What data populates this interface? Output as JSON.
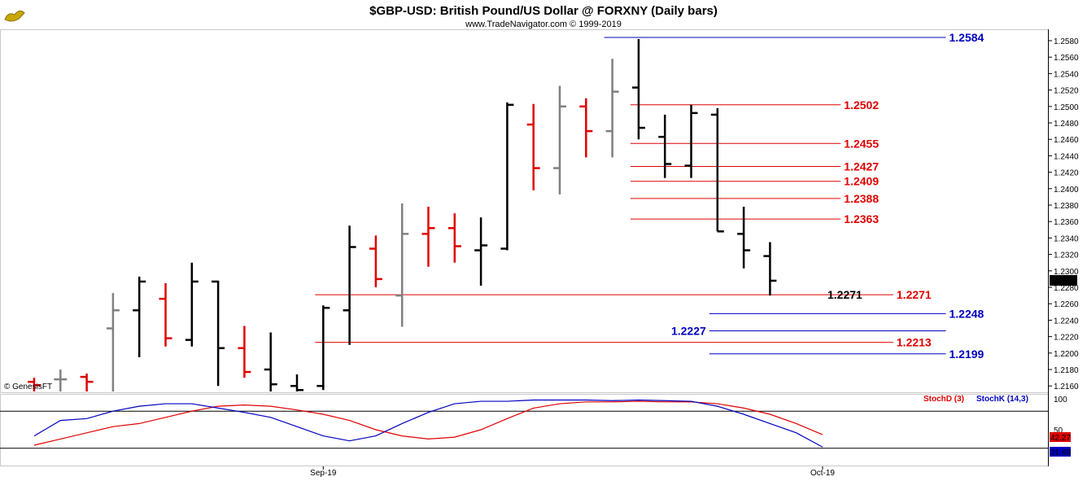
{
  "header": {
    "title": "$GBP-USD:  British Pound/US Dollar @ FORXNY  (Daily bars)",
    "subtitle": "www.TradeNavigator.com © 1999-2019",
    "logo_icon": "genie-lamp-logo-icon"
  },
  "watermark": "© GenesisFT",
  "colors": {
    "up_bar": "#000000",
    "down_bar": "#e00000",
    "neutral_bar": "#808080",
    "stoch_d": "#e00000",
    "stoch_k": "#0000c0",
    "blue_level": "#0000c0",
    "red_level": "#e00000"
  },
  "chart_data": [
    {
      "type": "ohlc",
      "name": "$GBP-USD",
      "ylim": [
        1.215,
        1.259
      ],
      "y_ticks": [
        "1.2580",
        "1.2560",
        "1.2540",
        "1.2520",
        "1.2500",
        "1.2480",
        "1.2460",
        "1.2440",
        "1.2420",
        "1.2400",
        "1.2380",
        "1.2360",
        "1.2340",
        "1.2320",
        "1.2300",
        "1.2280",
        "1.2260",
        "1.2240",
        "1.2220",
        "1.2200",
        "1.2180",
        "1.2160"
      ],
      "last_price": "1.2288",
      "x_labels": [
        {
          "label": "Sep-19",
          "bar": 11
        },
        {
          "label": "Oct-19",
          "bar": 30
        }
      ],
      "bars": [
        {
          "o": 1.2165,
          "h": 1.217,
          "l": 1.214,
          "c": 1.2161,
          "color": "red"
        },
        {
          "o": 1.2168,
          "h": 1.218,
          "l": 1.215,
          "c": 1.2168,
          "color": "gray"
        },
        {
          "o": 1.2171,
          "h": 1.2175,
          "l": 1.215,
          "c": 1.2165,
          "color": "red"
        },
        {
          "o": 1.223,
          "h": 1.2273,
          "l": 1.215,
          "c": 1.2252,
          "color": "gray"
        },
        {
          "o": 1.2252,
          "h": 1.2293,
          "l": 1.2195,
          "c": 1.2287,
          "color": "black"
        },
        {
          "o": 1.2266,
          "h": 1.2285,
          "l": 1.2208,
          "c": 1.2218,
          "color": "red"
        },
        {
          "o": 1.2216,
          "h": 1.231,
          "l": 1.2208,
          "c": 1.2287,
          "color": "black"
        },
        {
          "o": 1.2287,
          "h": 1.2288,
          "l": 1.216,
          "c": 1.2206,
          "color": "black"
        },
        {
          "o": 1.2206,
          "h": 1.2233,
          "l": 1.217,
          "c": 1.2177,
          "color": "red"
        },
        {
          "o": 1.218,
          "h": 1.2225,
          "l": 1.215,
          "c": 1.2162,
          "color": "black"
        },
        {
          "o": 1.216,
          "h": 1.2174,
          "l": 1.215,
          "c": 1.2155,
          "color": "black"
        },
        {
          "o": 1.216,
          "h": 1.2258,
          "l": 1.2155,
          "c": 1.2255,
          "color": "black"
        },
        {
          "o": 1.2252,
          "h": 1.2355,
          "l": 1.221,
          "c": 1.2329,
          "color": "black"
        },
        {
          "o": 1.2327,
          "h": 1.2343,
          "l": 1.228,
          "c": 1.229,
          "color": "red"
        },
        {
          "o": 1.227,
          "h": 1.2382,
          "l": 1.2232,
          "c": 1.2345,
          "color": "gray"
        },
        {
          "o": 1.2345,
          "h": 1.2378,
          "l": 1.2305,
          "c": 1.2352,
          "color": "red"
        },
        {
          "o": 1.2352,
          "h": 1.237,
          "l": 1.231,
          "c": 1.233,
          "color": "red"
        },
        {
          "o": 1.2325,
          "h": 1.2365,
          "l": 1.2282,
          "c": 1.2331,
          "color": "black"
        },
        {
          "o": 1.2327,
          "h": 1.2505,
          "l": 1.2325,
          "c": 1.2502,
          "color": "black"
        },
        {
          "o": 1.2478,
          "h": 1.2503,
          "l": 1.2398,
          "c": 1.2425,
          "color": "red"
        },
        {
          "o": 1.2425,
          "h": 1.2525,
          "l": 1.2393,
          "c": 1.25,
          "color": "gray"
        },
        {
          "o": 1.25,
          "h": 1.251,
          "l": 1.2438,
          "c": 1.247,
          "color": "red"
        },
        {
          "o": 1.247,
          "h": 1.2558,
          "l": 1.2438,
          "c": 1.2518,
          "color": "gray"
        },
        {
          "o": 1.2523,
          "h": 1.2582,
          "l": 1.246,
          "c": 1.2474,
          "color": "black"
        },
        {
          "o": 1.2463,
          "h": 1.249,
          "l": 1.2413,
          "c": 1.243,
          "color": "black"
        },
        {
          "o": 1.2428,
          "h": 1.2502,
          "l": 1.2413,
          "c": 1.2492,
          "color": "black"
        },
        {
          "o": 1.249,
          "h": 1.2498,
          "l": 1.2348,
          "c": 1.2348,
          "color": "black"
        },
        {
          "o": 1.2345,
          "h": 1.2378,
          "l": 1.2303,
          "c": 1.2325,
          "color": "black"
        },
        {
          "o": 1.2318,
          "h": 1.2335,
          "l": 1.227,
          "c": 1.2288,
          "color": "black"
        }
      ],
      "levels": [
        {
          "value": 1.2584,
          "label": "1.2584",
          "color": "blue",
          "from_bar": 22,
          "to_bar": 35,
          "label_side": "right"
        },
        {
          "value": 1.2502,
          "label": "1.2502",
          "color": "red",
          "from_bar": 23,
          "to_bar": 31,
          "label_side": "right"
        },
        {
          "value": 1.2455,
          "label": "1.2455",
          "color": "red",
          "from_bar": 23,
          "to_bar": 31,
          "label_side": "right"
        },
        {
          "value": 1.2427,
          "label": "1.2427",
          "color": "red",
          "from_bar": 23,
          "to_bar": 31,
          "label_side": "right"
        },
        {
          "value": 1.2409,
          "label": "1.2409",
          "color": "red",
          "from_bar": 23,
          "to_bar": 31,
          "label_side": "right"
        },
        {
          "value": 1.2388,
          "label": "1.2388",
          "color": "red",
          "from_bar": 23,
          "to_bar": 31,
          "label_side": "right"
        },
        {
          "value": 1.2363,
          "label": "1.2363",
          "color": "red",
          "from_bar": 23,
          "to_bar": 31,
          "label_side": "right"
        },
        {
          "value": 1.2271,
          "label": "1.2271",
          "color": "red",
          "from_bar": 11,
          "to_bar": 33,
          "label_side": "right"
        },
        {
          "value": 1.2248,
          "label": "1.2248",
          "color": "blue",
          "from_bar": 26,
          "to_bar": 35,
          "label_side": "right"
        },
        {
          "value": 1.2227,
          "label": "1.2227",
          "color": "blue",
          "from_bar": 26,
          "to_bar": 35,
          "label_side": "left"
        },
        {
          "value": 1.2213,
          "label": "1.2213",
          "color": "red",
          "from_bar": 11,
          "to_bar": 33,
          "label_side": "right"
        },
        {
          "value": 1.2199,
          "label": "1.2199",
          "color": "blue",
          "from_bar": 26,
          "to_bar": 35,
          "label_side": "right"
        }
      ],
      "annotations": [
        {
          "text": "1.2271",
          "value": 1.2271,
          "bar": 30
        }
      ]
    },
    {
      "type": "line",
      "name": "Stochastic",
      "ylim": [
        0,
        100
      ],
      "y_ticks": [
        "100",
        "50"
      ],
      "legend_d": "StochD (3)",
      "legend_k": "StochK (14,3)",
      "last_d": "42.27",
      "last_k": "21.69",
      "series": [
        {
          "name": "StochD (3)",
          "color": "red",
          "values": [
            25,
            35,
            45,
            55,
            60,
            70,
            80,
            88,
            90,
            88,
            82,
            75,
            65,
            50,
            40,
            35,
            38,
            50,
            68,
            85,
            92,
            95,
            95,
            96,
            95,
            95,
            92,
            85,
            75,
            60,
            42
          ]
        },
        {
          "name": "StochK (14,3)",
          "color": "blue",
          "values": [
            40,
            65,
            68,
            80,
            88,
            92,
            92,
            85,
            78,
            70,
            55,
            40,
            32,
            40,
            60,
            78,
            92,
            96,
            96,
            98,
            98,
            98,
            97,
            98,
            97,
            96,
            88,
            75,
            60,
            45,
            22
          ]
        }
      ]
    }
  ]
}
